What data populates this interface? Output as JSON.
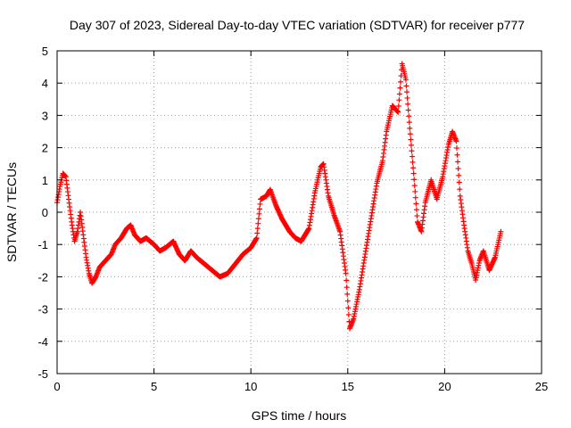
{
  "chart_data": {
    "type": "scatter",
    "title": "Day 307 of 2023, Sidereal Day-to-day VTEC variation (SDTVAR) for receiver p777",
    "xlabel": "GPS time / hours",
    "ylabel": "SDTVAR / TECUs",
    "xlim": [
      0,
      25
    ],
    "ylim": [
      -5,
      5
    ],
    "xticks": [
      0,
      5,
      10,
      15,
      20,
      25
    ],
    "xtick_labels": [
      "0",
      "5",
      "10",
      "15",
      "20",
      "25"
    ],
    "yticks": [
      -5,
      -4,
      -3,
      -2,
      -1,
      0,
      1,
      2,
      3,
      4,
      5
    ],
    "ytick_labels": [
      "-5",
      "-4",
      "-3",
      "-2",
      "-1",
      "0",
      "1",
      "2",
      "3",
      "4",
      "5"
    ],
    "grid": true,
    "marker": "+",
    "series_color": "#ff0000",
    "series": [
      {
        "name": "p777",
        "x": [
          0.0,
          0.15,
          0.3,
          0.45,
          0.6,
          0.75,
          0.9,
          1.05,
          1.2,
          1.35,
          1.5,
          1.65,
          1.8,
          2.0,
          2.2,
          2.5,
          2.8,
          3.0,
          3.3,
          3.6,
          3.8,
          4.0,
          4.3,
          4.6,
          5.0,
          5.3,
          5.6,
          6.0,
          6.3,
          6.6,
          6.9,
          7.2,
          7.6,
          8.0,
          8.4,
          8.8,
          9.2,
          9.6,
          10.0,
          10.3,
          10.5,
          10.8,
          11.0,
          11.3,
          11.6,
          12.0,
          12.3,
          12.6,
          13.0,
          13.3,
          13.6,
          13.75,
          14.0,
          14.3,
          14.6,
          14.9,
          15.1,
          15.3,
          15.6,
          15.9,
          16.2,
          16.5,
          16.8,
          17.0,
          17.3,
          17.6,
          17.8,
          18.0,
          18.2,
          18.4,
          18.6,
          18.8,
          19.0,
          19.3,
          19.6,
          19.9,
          20.2,
          20.4,
          20.6,
          20.8,
          21.0,
          21.2,
          21.4,
          21.6,
          21.8,
          22.0,
          22.3,
          22.6,
          22.9
        ],
        "y": [
          0.3,
          0.8,
          1.2,
          1.1,
          0.4,
          -0.3,
          -0.9,
          -0.6,
          0.0,
          -0.7,
          -1.4,
          -1.9,
          -2.2,
          -2.0,
          -1.7,
          -1.5,
          -1.3,
          -1.0,
          -0.8,
          -0.5,
          -0.4,
          -0.7,
          -0.9,
          -0.8,
          -1.0,
          -1.2,
          -1.1,
          -0.9,
          -1.3,
          -1.5,
          -1.2,
          -1.4,
          -1.6,
          -1.8,
          -2.0,
          -1.9,
          -1.6,
          -1.3,
          -1.1,
          -0.8,
          0.4,
          0.5,
          0.7,
          0.2,
          -0.2,
          -0.6,
          -0.8,
          -0.9,
          -0.5,
          0.6,
          1.4,
          1.5,
          0.5,
          -0.1,
          -0.6,
          -1.9,
          -3.6,
          -3.3,
          -2.4,
          -1.3,
          -0.2,
          0.9,
          1.6,
          2.5,
          3.3,
          3.1,
          4.6,
          4.1,
          2.6,
          1.2,
          -0.3,
          -0.6,
          0.3,
          1.0,
          0.4,
          1.1,
          2.1,
          2.5,
          2.2,
          0.5,
          -0.4,
          -1.2,
          -1.6,
          -2.1,
          -1.5,
          -1.2,
          -1.8,
          -1.4,
          -0.6
        ]
      }
    ]
  }
}
